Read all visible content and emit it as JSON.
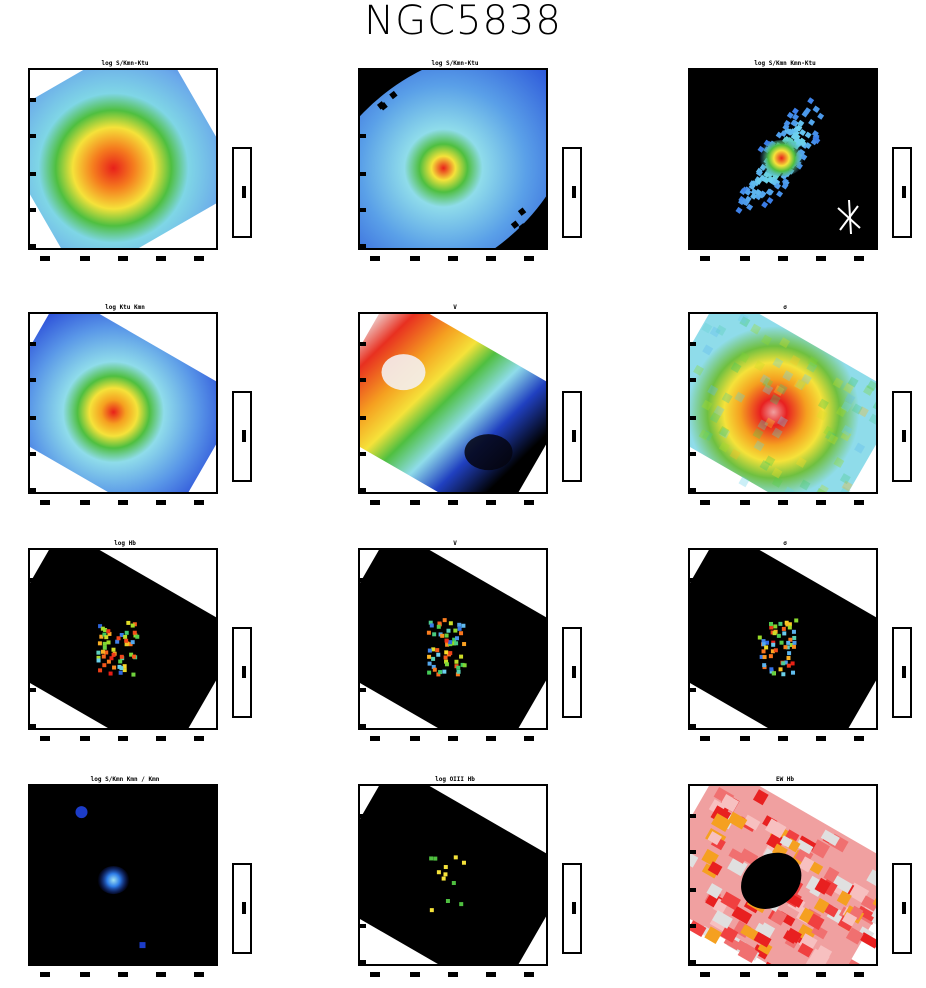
{
  "title": "NGC5838",
  "panels": [
    {
      "id": "p1",
      "title": "log S/Kmn-Ktu",
      "kind": "galaxy",
      "palette": "rainbow",
      "style": "smooth-wide"
    },
    {
      "id": "p2",
      "title": "log S/Kmn-Ktu",
      "kind": "galaxy",
      "palette": "rainbow",
      "style": "pixel-ellipse"
    },
    {
      "id": "p3",
      "title": "log S/Kmn Kmn-Ktu",
      "kind": "galaxy",
      "palette": "rainbow",
      "style": "compact-dark"
    },
    {
      "id": "p4",
      "title": "log Ktu Kmn",
      "kind": "galaxy",
      "palette": "rainbow",
      "style": "rect-smooth"
    },
    {
      "id": "p5",
      "title": "V",
      "kind": "velocity",
      "palette": "rainbow",
      "style": "velocity"
    },
    {
      "id": "p6",
      "title": "σ",
      "kind": "dispersion",
      "palette": "rainbow",
      "style": "dispersion"
    },
    {
      "id": "p7",
      "title": "log Hb",
      "kind": "sparse",
      "palette": "rainbow",
      "style": "sparse"
    },
    {
      "id": "p8",
      "title": "V",
      "kind": "sparse",
      "palette": "rainbow",
      "style": "sparse"
    },
    {
      "id": "p9",
      "title": "σ",
      "kind": "sparse",
      "palette": "rainbow",
      "style": "sparse"
    },
    {
      "id": "p10",
      "title": "log S/Kmn Kmn / Kmn",
      "kind": "dark-blue",
      "palette": "blue",
      "style": "darkblue"
    },
    {
      "id": "p11",
      "title": "log OIII Hb",
      "kind": "sparse-yellow",
      "palette": "yellow",
      "style": "sparse-yellow"
    },
    {
      "id": "p12",
      "title": "EW Hb",
      "kind": "red",
      "palette": "red",
      "style": "red"
    }
  ],
  "chart_data": [
    {
      "type": "heatmap",
      "title": "log S/Kmn-Ktu"
    },
    {
      "type": "heatmap",
      "title": "log S/Kmn-Ktu"
    },
    {
      "type": "heatmap",
      "title": "log S/Kmn Kmn-Ktu"
    },
    {
      "type": "heatmap",
      "title": "log Ktu Kmn"
    },
    {
      "type": "heatmap",
      "title": "V"
    },
    {
      "type": "heatmap",
      "title": "σ"
    },
    {
      "type": "heatmap",
      "title": "log Hb"
    },
    {
      "type": "heatmap",
      "title": "V"
    },
    {
      "type": "heatmap",
      "title": "σ"
    },
    {
      "type": "heatmap",
      "title": "log S/Kmn Kmn / Kmn"
    },
    {
      "type": "heatmap",
      "title": "log OIII Hb"
    },
    {
      "type": "heatmap",
      "title": "EW Hb"
    }
  ]
}
